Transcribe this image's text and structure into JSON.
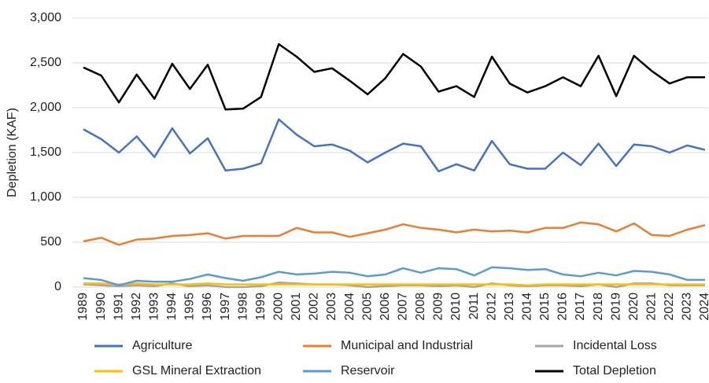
{
  "chart_data": {
    "type": "line",
    "y_label": "Depletion (KAF)",
    "categories": [
      "1989",
      "1990",
      "1991",
      "1992",
      "1993",
      "1994",
      "1995",
      "1996",
      "1997",
      "1998",
      "1999",
      "2000",
      "2001",
      "2002",
      "2003",
      "2004",
      "2005",
      "2006",
      "2007",
      "2008",
      "2009",
      "2010",
      "2011",
      "2012",
      "2013",
      "2014",
      "2015",
      "2016",
      "2017",
      "2018",
      "2019",
      "2020",
      "2021",
      "2022",
      "2023",
      "2024"
    ],
    "series": [
      {
        "name": "Agriculture",
        "color": "#4472c4",
        "values": [
          1760,
          1650,
          1500,
          1680,
          1450,
          1770,
          1490,
          1660,
          1300,
          1320,
          1380,
          1870,
          1700,
          1570,
          1590,
          1520,
          1390,
          1500,
          1600,
          1570,
          1290,
          1370,
          1300,
          1630,
          1370,
          1320,
          1320,
          1500,
          1360,
          1600,
          1350,
          1590,
          1570,
          1500,
          1580,
          1530
        ]
      },
      {
        "name": "Municipal and Industrial",
        "color": "#ed7d31",
        "values": [
          510,
          550,
          470,
          530,
          540,
          570,
          580,
          600,
          540,
          570,
          570,
          570,
          660,
          610,
          610,
          560,
          600,
          640,
          700,
          660,
          640,
          610,
          640,
          620,
          630,
          610,
          660,
          660,
          720,
          700,
          620,
          710,
          580,
          570,
          640,
          690
        ]
      },
      {
        "name": "Incidental Loss",
        "color": "#a5a5a5",
        "values": [
          30,
          20,
          10,
          20,
          10,
          40,
          10,
          20,
          0,
          0,
          10,
          50,
          40,
          30,
          30,
          20,
          0,
          10,
          20,
          20,
          10,
          20,
          0,
          40,
          20,
          10,
          20,
          20,
          10,
          30,
          0,
          40,
          40,
          20,
          20,
          20
        ]
      },
      {
        "name": "GSL Mineral Extraction",
        "color": "#ffc000",
        "values": [
          40,
          40,
          30,
          40,
          30,
          30,
          30,
          40,
          30,
          30,
          30,
          30,
          30,
          30,
          30,
          30,
          30,
          30,
          30,
          30,
          30,
          30,
          30,
          30,
          30,
          20,
          30,
          30,
          30,
          30,
          30,
          30,
          30,
          30,
          30,
          30
        ]
      },
      {
        "name": "Reservoir",
        "color": "#5b9bd5",
        "values": [
          100,
          80,
          20,
          70,
          60,
          60,
          90,
          140,
          100,
          70,
          110,
          170,
          140,
          150,
          170,
          160,
          120,
          140,
          210,
          160,
          210,
          200,
          130,
          220,
          210,
          190,
          200,
          140,
          120,
          160,
          130,
          180,
          170,
          140,
          80,
          80
        ]
      },
      {
        "name": "Total Depletion",
        "color": "#000000",
        "values": [
          2450,
          2360,
          2060,
          2370,
          2100,
          2490,
          2210,
          2480,
          1980,
          1990,
          2120,
          2710,
          2570,
          2400,
          2440,
          2300,
          2150,
          2330,
          2600,
          2460,
          2180,
          2240,
          2120,
          2570,
          2270,
          2170,
          2240,
          2340,
          2240,
          2580,
          2130,
          2580,
          2410,
          2270,
          2340,
          2340
        ]
      }
    ],
    "ylim": [
      0,
      3000
    ],
    "yticks": [
      0,
      500,
      {
        "value": 1000,
        "label": "1,000"
      },
      {
        "value": 1500,
        "label": "1,500"
      },
      {
        "value": 2000,
        "label": "2,000"
      },
      {
        "value": 2500,
        "label": "2,500"
      },
      {
        "value": 3000,
        "label": "3,000"
      }
    ],
    "grid": true
  }
}
